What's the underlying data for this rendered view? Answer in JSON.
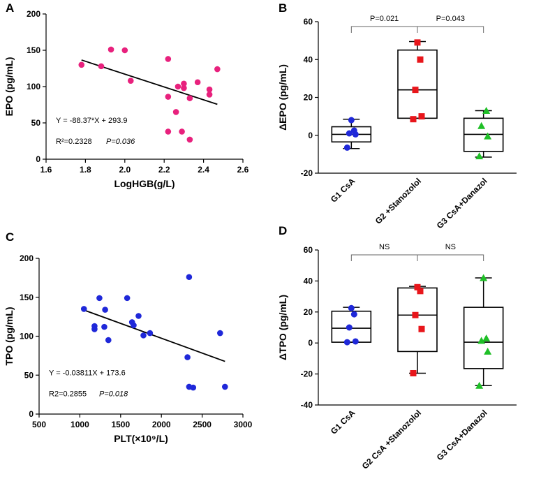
{
  "chart_data": [
    {
      "panel": "A",
      "type": "scatter",
      "xlabel": "LogHGB(g/L)",
      "ylabel": "EPO (pg/mL)",
      "xlim": [
        1.6,
        2.6
      ],
      "ylim": [
        0,
        200
      ],
      "xticks": [
        1.6,
        1.8,
        2.0,
        2.2,
        2.4,
        2.6
      ],
      "xtick_labels": [
        "1.6",
        "1.8",
        "2.0",
        "2.2",
        "2.4",
        "2.6"
      ],
      "yticks": [
        0,
        50,
        100,
        150,
        200
      ],
      "ytick_labels": [
        "0",
        "50",
        "100",
        "150",
        "200"
      ],
      "color": "#e8217d",
      "points": [
        [
          1.78,
          130
        ],
        [
          1.88,
          128
        ],
        [
          1.93,
          151
        ],
        [
          2.0,
          150
        ],
        [
          2.03,
          108
        ],
        [
          2.22,
          138
        ],
        [
          2.22,
          86
        ],
        [
          2.22,
          38
        ],
        [
          2.26,
          65
        ],
        [
          2.27,
          100
        ],
        [
          2.29,
          38
        ],
        [
          2.3,
          98
        ],
        [
          2.3,
          104
        ],
        [
          2.33,
          84
        ],
        [
          2.33,
          27
        ],
        [
          2.37,
          106
        ],
        [
          2.43,
          96
        ],
        [
          2.43,
          89
        ],
        [
          2.47,
          124
        ]
      ],
      "fit": {
        "x": [
          1.78,
          2.47
        ],
        "slope": -88.37,
        "intercept": 293.9
      },
      "equation": "Y = -88.37*X + 293.9",
      "r2": "R²=0.2328",
      "p": "P=0.036"
    },
    {
      "panel": "B",
      "type": "box",
      "ylabel": "ΔEPO (pg/mL)",
      "ylim": [
        -20,
        60
      ],
      "yticks": [
        -20,
        0,
        20,
        40,
        60
      ],
      "ytick_labels": [
        "-20",
        "0",
        "20",
        "40",
        "60"
      ],
      "categories": [
        "G1 CsA",
        "G2 +Stanozolol",
        "G3 CsA+Danazol"
      ],
      "groups": [
        {
          "min": -7,
          "q1": -3.5,
          "median": 0.5,
          "q3": 4.5,
          "max": 8.5,
          "points": [
            -6.5,
            0.5,
            1,
            2.5,
            8
          ],
          "marker": "circle",
          "color": "#1f28d9"
        },
        {
          "min": 9,
          "q1": 9,
          "median": 24,
          "q3": 45,
          "max": 49.5,
          "points": [
            8.5,
            10,
            24,
            40,
            49
          ],
          "marker": "square",
          "color": "#e8161b"
        },
        {
          "min": -11.5,
          "q1": -8.5,
          "median": 0.5,
          "q3": 9,
          "max": 13,
          "points": [
            -11,
            -0.5,
            5,
            13
          ],
          "marker": "triangle",
          "color": "#1fbf27"
        }
      ],
      "comparisons": [
        {
          "from": 0,
          "to": 1,
          "label": "P=0.021"
        },
        {
          "from": 1,
          "to": 2,
          "label": "P=0.043"
        }
      ]
    },
    {
      "panel": "C",
      "type": "scatter",
      "xlabel": "PLT(×10⁹/L)",
      "ylabel": "TPO (pg/mL)",
      "xlim": [
        500,
        3000
      ],
      "ylim": [
        0,
        200
      ],
      "xticks": [
        500,
        1000,
        1500,
        2000,
        2500,
        3000
      ],
      "xtick_labels": [
        "500",
        "1000",
        "1500",
        "2000",
        "2500",
        "3000"
      ],
      "yticks": [
        0,
        50,
        100,
        150,
        200
      ],
      "ytick_labels": [
        "0",
        "50",
        "100",
        "150",
        "200"
      ],
      "color": "#1f28d9",
      "points": [
        [
          1050,
          135
        ],
        [
          1180,
          113
        ],
        [
          1180,
          109
        ],
        [
          1240,
          149
        ],
        [
          1300,
          112
        ],
        [
          1310,
          134
        ],
        [
          1350,
          95
        ],
        [
          1580,
          149
        ],
        [
          1640,
          118
        ],
        [
          1660,
          114
        ],
        [
          1720,
          126
        ],
        [
          1780,
          101
        ],
        [
          1860,
          104
        ],
        [
          2320,
          73
        ],
        [
          2340,
          176
        ],
        [
          2340,
          35
        ],
        [
          2390,
          34
        ],
        [
          2720,
          104
        ],
        [
          2780,
          35
        ]
      ],
      "fit": {
        "x": [
          1050,
          2780
        ],
        "slope": -0.03811,
        "intercept": 173.6
      },
      "equation": "Y = -0.03811X + 173.6",
      "r2": "R2=0.2855",
      "p": "P=0.018"
    },
    {
      "panel": "D",
      "type": "box",
      "ylabel": "ΔTPO (pg/mL)",
      "ylim": [
        -40,
        60
      ],
      "yticks": [
        -40,
        -20,
        0,
        20,
        40,
        60
      ],
      "ytick_labels": [
        "-40",
        "-20",
        "0",
        "20",
        "40",
        "60"
      ],
      "categories": [
        "G1 CsA",
        "G2 CsA +Stanozolol",
        "G3 CsA+Danazol"
      ],
      "groups": [
        {
          "min": 0.5,
          "q1": 0.5,
          "median": 9.5,
          "q3": 20.5,
          "max": 23,
          "points": [
            0.5,
            1,
            10,
            18.5,
            22.5
          ],
          "marker": "circle",
          "color": "#1f28d9"
        },
        {
          "min": -19.5,
          "q1": -5.5,
          "median": 18,
          "q3": 35.5,
          "max": 36.5,
          "points": [
            -19.5,
            9,
            18,
            33.5,
            36
          ],
          "marker": "square",
          "color": "#e8161b"
        },
        {
          "min": -27.5,
          "q1": -16.5,
          "median": 0.5,
          "q3": 23,
          "max": 42,
          "points": [
            -27.5,
            -5.5,
            1.5,
            3,
            42
          ],
          "marker": "triangle",
          "color": "#1fbf27"
        }
      ],
      "comparisons": [
        {
          "from": 0,
          "to": 1,
          "label": "NS"
        },
        {
          "from": 1,
          "to": 2,
          "label": "NS"
        }
      ]
    }
  ]
}
